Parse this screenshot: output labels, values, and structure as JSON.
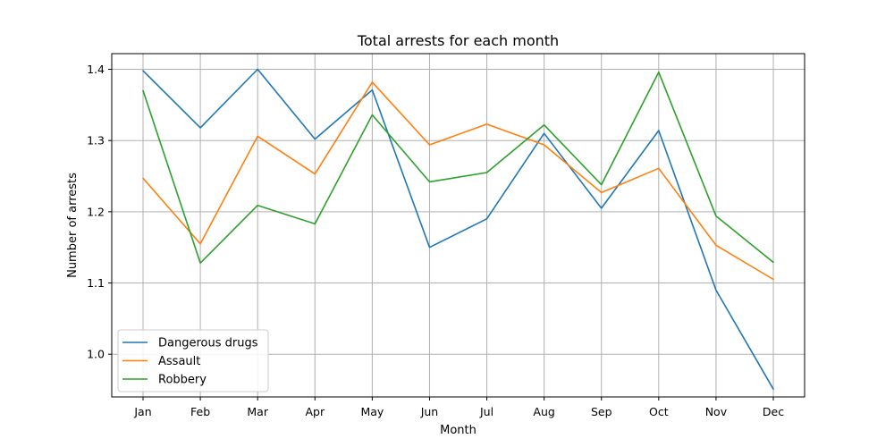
{
  "chart_data": {
    "type": "line",
    "title": "Total arrests for each month",
    "xlabel": "Month",
    "ylabel": "Number of arrests",
    "categories": [
      "Jan",
      "Feb",
      "Mar",
      "Apr",
      "May",
      "Jun",
      "Jul",
      "Aug",
      "Sep",
      "Oct",
      "Nov",
      "Dec"
    ],
    "ylim": [
      0.94,
      1.422
    ],
    "yticks": [
      1.0,
      1.1,
      1.2,
      1.3,
      1.4
    ],
    "grid": true,
    "legend_position": "lower-left",
    "series": [
      {
        "name": "Dangerous drugs",
        "color": "#1f77b4",
        "values": [
          1.398,
          1.318,
          1.4,
          1.302,
          1.371,
          1.15,
          1.19,
          1.31,
          1.205,
          1.314,
          1.09,
          0.951
        ]
      },
      {
        "name": "Assault",
        "color": "#ff7f0e",
        "values": [
          1.247,
          1.155,
          1.306,
          1.253,
          1.382,
          1.294,
          1.323,
          1.294,
          1.227,
          1.261,
          1.153,
          1.105
        ]
      },
      {
        "name": "Robbery",
        "color": "#2ca02c",
        "values": [
          1.37,
          1.128,
          1.209,
          1.183,
          1.336,
          1.242,
          1.255,
          1.322,
          1.238,
          1.396,
          1.194,
          1.129
        ]
      }
    ]
  }
}
